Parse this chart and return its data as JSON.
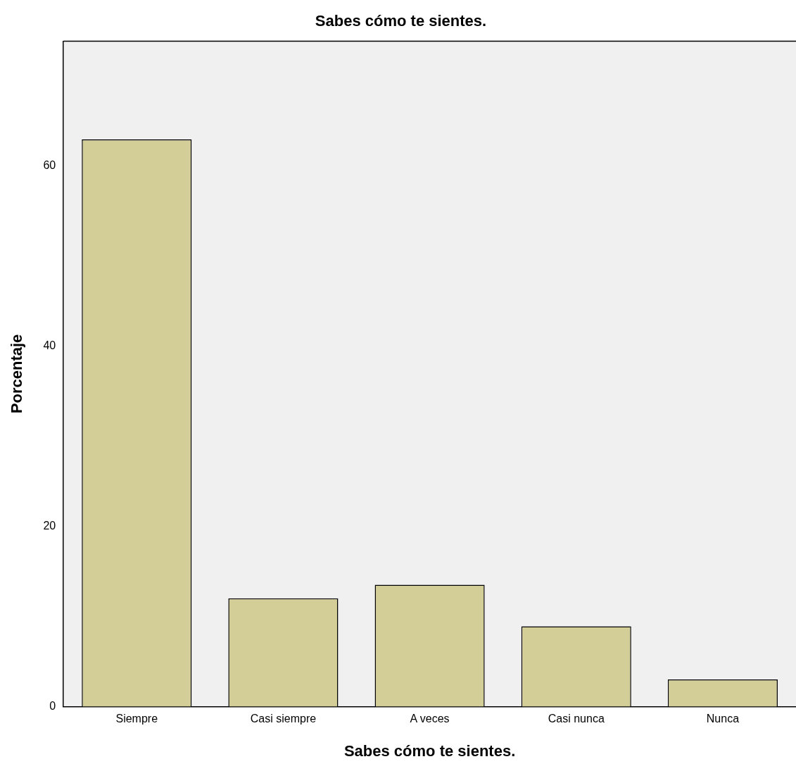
{
  "chart_data": {
    "type": "bar",
    "title": "Sabes cómo te sientes.",
    "xlabel": "Sabes cómo te sientes.",
    "ylabel": "Porcentaje",
    "categories": [
      "Siempre",
      "Casi siempre",
      "A veces",
      "Casi nunca",
      "Nunca"
    ],
    "values": [
      62.9,
      12.0,
      13.5,
      8.9,
      3.0
    ],
    "color": "#d3ce97",
    "ylim": [
      0,
      73.8
    ],
    "yticks": [
      0,
      20,
      40,
      60
    ],
    "grid": false,
    "legend": false
  }
}
